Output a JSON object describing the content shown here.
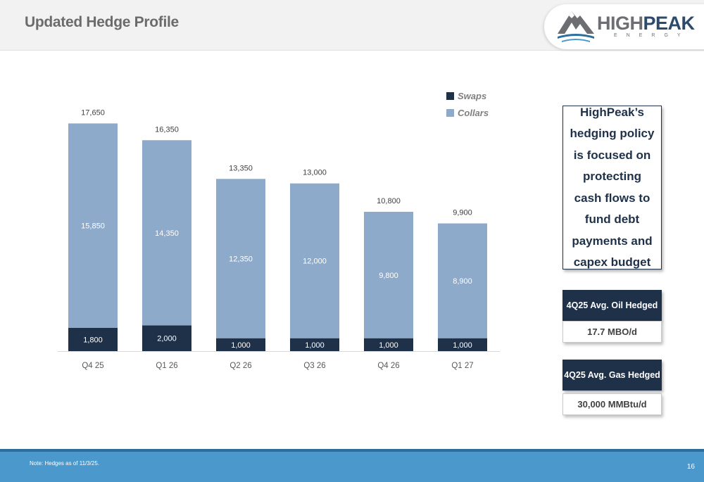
{
  "header": {
    "title": "Updated Hedge Profile",
    "logo": {
      "name_part1": "HIGH",
      "name_part2": "PEAK",
      "subtitle": "ENERGY",
      "mark": "mountain-logo-icon"
    }
  },
  "chart_data": {
    "type": "bar",
    "stacked": true,
    "categories": [
      "Q4 25",
      "Q1 26",
      "Q2 26",
      "Q3 26",
      "Q4 26",
      "Q1 27"
    ],
    "series": [
      {
        "name": "Swaps",
        "values": [
          1800,
          2000,
          1000,
          1000,
          1000,
          1000
        ],
        "color": "#1f3149"
      },
      {
        "name": "Collars",
        "values": [
          15850,
          14350,
          12350,
          12000,
          9800,
          8900
        ],
        "color": "#8eaacb"
      }
    ],
    "totals": [
      17650,
      16350,
      13350,
      13000,
      10800,
      9900
    ],
    "series_labels": [
      [
        "1,800",
        "2,000",
        "1,000",
        "1,000",
        "1,000",
        "1,000"
      ],
      [
        "15,850",
        "14,350",
        "12,350",
        "12,000",
        "9,800",
        "8,900"
      ]
    ],
    "total_labels": [
      "17,650",
      "16,350",
      "13,350",
      "13,000",
      "10,800",
      "9,900"
    ],
    "ylim": [
      0,
      18000
    ],
    "grid": false,
    "legend_position": "top-right"
  },
  "panel": {
    "policy_text": "HighPeak’s hedging policy is focused on protecting cash flows to fund debt payments and capex budget",
    "oil": {
      "title": "4Q25 Avg. Oil Hedged",
      "value": "17.7 MBO/d"
    },
    "gas": {
      "title": "4Q25  Avg. Gas Hedged",
      "value": "30,000 MMBtu/d"
    }
  },
  "footer": {
    "note": "Note: Hedges as of 11/3/25.",
    "page_number": "16"
  }
}
